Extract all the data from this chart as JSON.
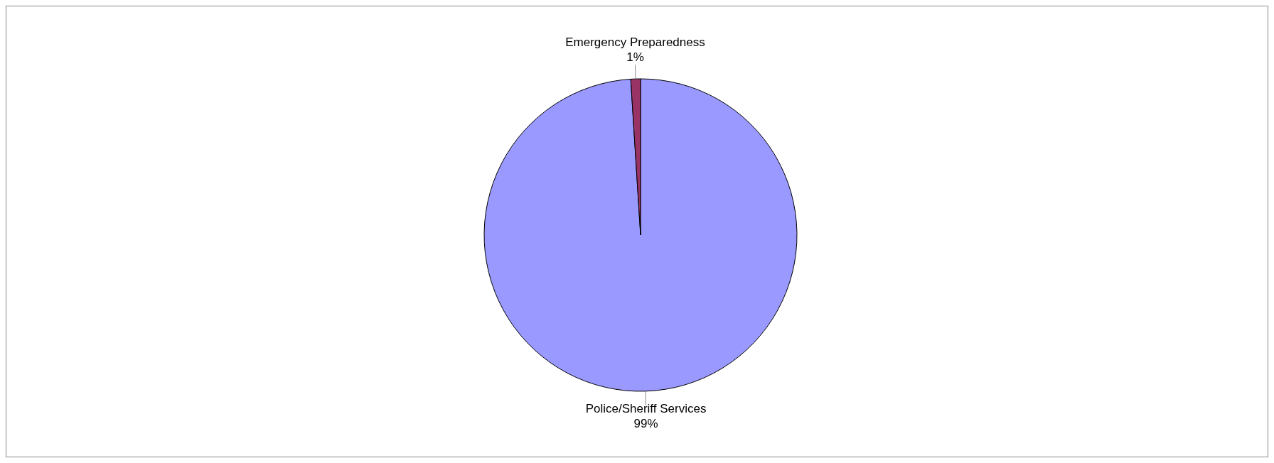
{
  "chart_data": {
    "type": "pie",
    "categories": [
      "Police/Sheriff Services",
      "Emergency Preparedness"
    ],
    "values": [
      99,
      1
    ],
    "colors": [
      "#9999ff",
      "#993366"
    ],
    "value_labels": [
      "99%",
      "1%"
    ]
  }
}
